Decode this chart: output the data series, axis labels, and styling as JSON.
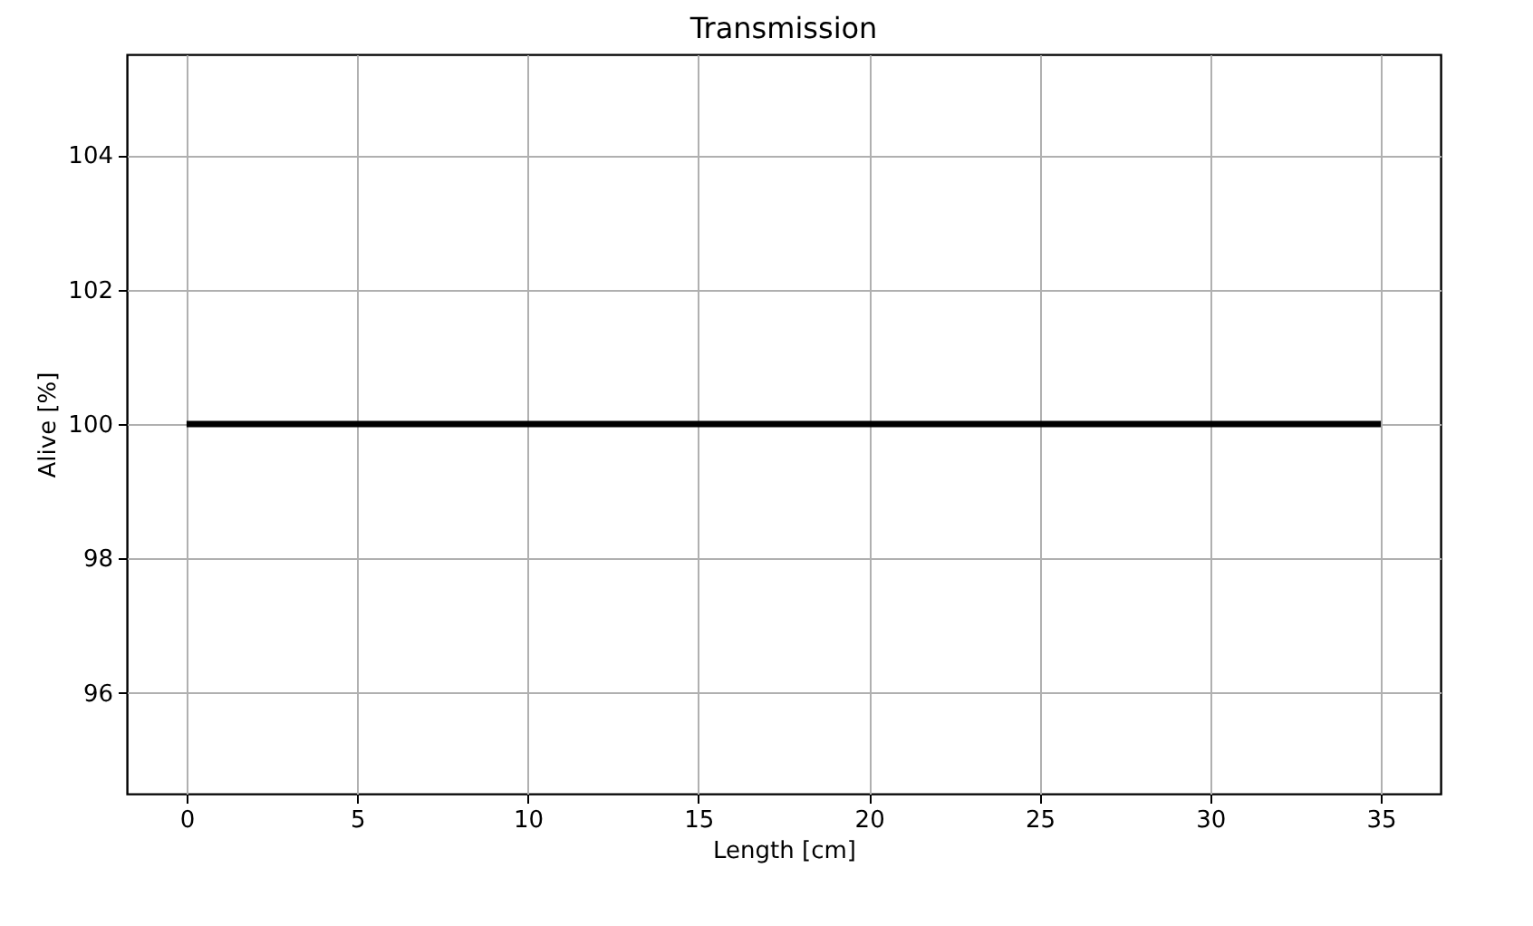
{
  "chart_data": {
    "type": "line",
    "title": "Transmission",
    "xlabel": "Length [cm]",
    "ylabel": "Alive [%]",
    "x": [
      0,
      35
    ],
    "series": [
      {
        "color": "#000000",
        "values": [
          100,
          100
        ]
      }
    ],
    "xlim": [
      -1.75,
      36.75
    ],
    "xticks": [
      0,
      5,
      10,
      15,
      20,
      25,
      30,
      35
    ],
    "ylim": [
      94.5,
      105.5
    ],
    "yticks": [
      96,
      98,
      100,
      102,
      104
    ],
    "grid": true,
    "marker": "none",
    "line_style": "solid"
  }
}
